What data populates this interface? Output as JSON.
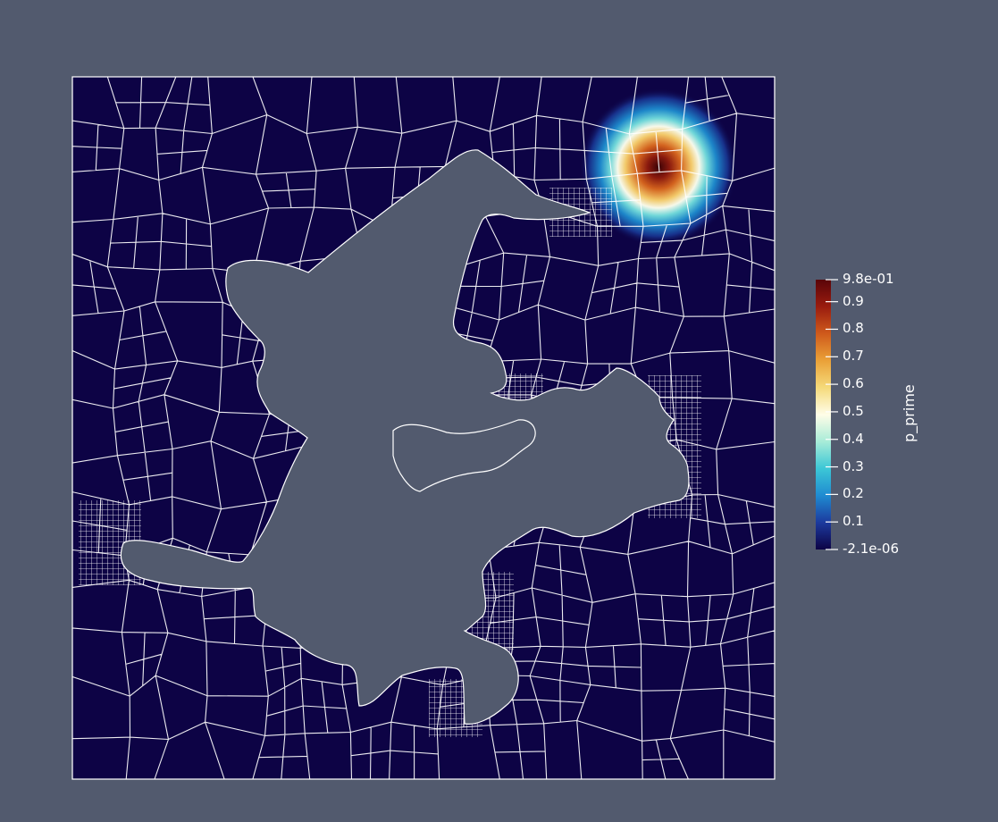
{
  "scalar_name": "p_prime",
  "colorbar": {
    "max_label": "9.8e-01",
    "min_label": "-2.1e-06",
    "ticks": [
      "0.9",
      "0.8",
      "0.7",
      "0.6",
      "0.5",
      "0.4",
      "0.3",
      "0.2",
      "0.1"
    ],
    "tick_values": [
      0.9,
      0.8,
      0.7,
      0.6,
      0.5,
      0.4,
      0.3,
      0.2,
      0.1
    ],
    "range": [
      -2.1e-06,
      0.98
    ],
    "colormap": [
      "#0d0345",
      "#1c3a9e",
      "#1f8bd1",
      "#3cc7d6",
      "#a8ecd8",
      "#fffde8",
      "#f5da7a",
      "#eaa138",
      "#cf5a1b",
      "#9a1c0f",
      "#5a0408"
    ]
  },
  "background_color": "#525a6e",
  "mesh_color": "#ffffff",
  "field_base_color": "#0d0345"
}
